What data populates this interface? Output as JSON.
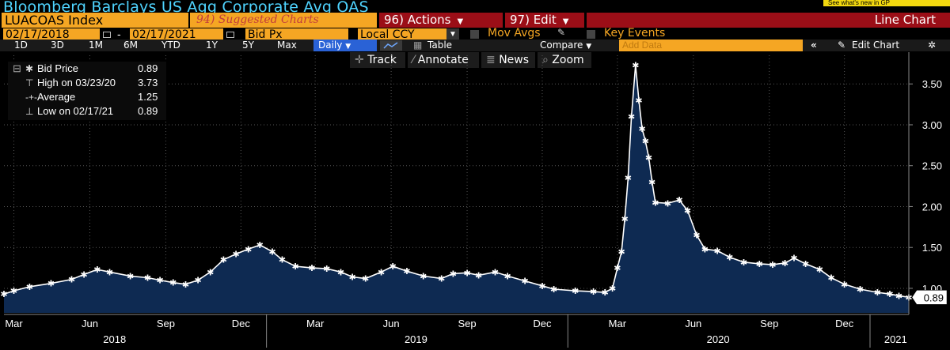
{
  "header": {
    "title": "Bloomberg Barclays US Agg Corporate Avg OAS",
    "whats_new": "See what's new in GP"
  },
  "row2": {
    "ticker": "LUACOAS Index",
    "suggested": "94) Suggested Charts",
    "actions": "96) Actions",
    "edit": "97) Edit",
    "chart_type": "Line Chart"
  },
  "row3": {
    "start_date": "02/17/2018",
    "end_date": "02/17/2021",
    "field": "Bid Px",
    "currency": "Local CCY",
    "mov_avgs": "Mov Avgs",
    "key_events": "Key Events"
  },
  "toolbar": {
    "periods": [
      "1D",
      "3D",
      "1M",
      "6M",
      "YTD",
      "1Y",
      "5Y",
      "Max"
    ],
    "frequency": "Daily",
    "table": "Table",
    "compare": "Compare",
    "add_data_placeholder": "Add Data",
    "edit_chart": "Edit Chart"
  },
  "tools": {
    "track": "Track",
    "annotate": "Annotate",
    "news": "News",
    "zoom": "Zoom"
  },
  "legend": [
    {
      "label": "Bid Price",
      "value": "0.89"
    },
    {
      "label": "High on 03/23/20",
      "value": "3.73"
    },
    {
      "label": "Average",
      "value": "1.25"
    },
    {
      "label": "Low on 02/17/21",
      "value": "0.89"
    }
  ],
  "last_value_tag": "0.89",
  "colors": {
    "title": "#4fd4ff",
    "orange": "#f5a623",
    "red_button": "#9b0e17",
    "area_fill": "#0e2a52",
    "line": "#ffffff"
  },
  "chart_data": {
    "type": "area",
    "title": "Bloomberg Barclays US Agg Corporate Avg OAS",
    "xlabel": "",
    "ylabel": "",
    "ylim": [
      0.7,
      3.85
    ],
    "y_ticks": [
      "1.00",
      "1.50",
      "2.00",
      "2.50",
      "3.00",
      "3.50"
    ],
    "x_tick_labels": [
      "Mar",
      "Jun",
      "Sep",
      "Dec",
      "Mar",
      "Jun",
      "Sep",
      "Dec",
      "Mar",
      "Jun",
      "Sep",
      "Dec"
    ],
    "year_labels": [
      "2018",
      "2019",
      "2020",
      "2021"
    ],
    "grid": true,
    "series": [
      {
        "name": "Bid Price",
        "points": [
          [
            "2018-02-17",
            0.93
          ],
          [
            "2018-03-01",
            0.97
          ],
          [
            "2018-03-20",
            1.02
          ],
          [
            "2018-04-15",
            1.06
          ],
          [
            "2018-05-10",
            1.11
          ],
          [
            "2018-05-25",
            1.17
          ],
          [
            "2018-06-10",
            1.23
          ],
          [
            "2018-06-25",
            1.2
          ],
          [
            "2018-07-20",
            1.15
          ],
          [
            "2018-08-10",
            1.13
          ],
          [
            "2018-08-25",
            1.1
          ],
          [
            "2018-09-10",
            1.07
          ],
          [
            "2018-09-25",
            1.05
          ],
          [
            "2018-10-10",
            1.1
          ],
          [
            "2018-10-25",
            1.2
          ],
          [
            "2018-11-10",
            1.35
          ],
          [
            "2018-11-25",
            1.42
          ],
          [
            "2018-12-10",
            1.48
          ],
          [
            "2018-12-24",
            1.53
          ],
          [
            "2019-01-08",
            1.45
          ],
          [
            "2019-01-20",
            1.35
          ],
          [
            "2019-02-05",
            1.27
          ],
          [
            "2019-02-25",
            1.25
          ],
          [
            "2019-03-15",
            1.24
          ],
          [
            "2019-04-01",
            1.2
          ],
          [
            "2019-04-15",
            1.14
          ],
          [
            "2019-05-01",
            1.12
          ],
          [
            "2019-05-20",
            1.2
          ],
          [
            "2019-06-03",
            1.27
          ],
          [
            "2019-06-20",
            1.21
          ],
          [
            "2019-07-10",
            1.15
          ],
          [
            "2019-08-01",
            1.12
          ],
          [
            "2019-08-15",
            1.18
          ],
          [
            "2019-09-01",
            1.19
          ],
          [
            "2019-09-15",
            1.16
          ],
          [
            "2019-10-05",
            1.2
          ],
          [
            "2019-10-20",
            1.15
          ],
          [
            "2019-11-10",
            1.09
          ],
          [
            "2019-12-01",
            1.03
          ],
          [
            "2019-12-15",
            0.99
          ],
          [
            "2020-01-10",
            0.97
          ],
          [
            "2020-02-01",
            0.96
          ],
          [
            "2020-02-15",
            0.95
          ],
          [
            "2020-02-24",
            1.0
          ],
          [
            "2020-03-01",
            1.25
          ],
          [
            "2020-03-06",
            1.45
          ],
          [
            "2020-03-10",
            1.85
          ],
          [
            "2020-03-14",
            2.35
          ],
          [
            "2020-03-18",
            3.1
          ],
          [
            "2020-03-23",
            3.73
          ],
          [
            "2020-03-27",
            3.3
          ],
          [
            "2020-03-31",
            2.95
          ],
          [
            "2020-04-04",
            2.8
          ],
          [
            "2020-04-08",
            2.6
          ],
          [
            "2020-04-12",
            2.3
          ],
          [
            "2020-04-16",
            2.05
          ],
          [
            "2020-05-01",
            2.04
          ],
          [
            "2020-05-15",
            2.08
          ],
          [
            "2020-05-25",
            1.95
          ],
          [
            "2020-06-05",
            1.65
          ],
          [
            "2020-06-15",
            1.48
          ],
          [
            "2020-06-30",
            1.46
          ],
          [
            "2020-07-15",
            1.38
          ],
          [
            "2020-08-01",
            1.32
          ],
          [
            "2020-08-20",
            1.3
          ],
          [
            "2020-09-05",
            1.29
          ],
          [
            "2020-09-20",
            1.31
          ],
          [
            "2020-10-01",
            1.37
          ],
          [
            "2020-10-15",
            1.3
          ],
          [
            "2020-11-01",
            1.23
          ],
          [
            "2020-11-15",
            1.13
          ],
          [
            "2020-12-01",
            1.05
          ],
          [
            "2020-12-20",
            0.99
          ],
          [
            "2021-01-10",
            0.95
          ],
          [
            "2021-01-25",
            0.93
          ],
          [
            "2021-02-05",
            0.91
          ],
          [
            "2021-02-17",
            0.89
          ]
        ]
      }
    ]
  }
}
